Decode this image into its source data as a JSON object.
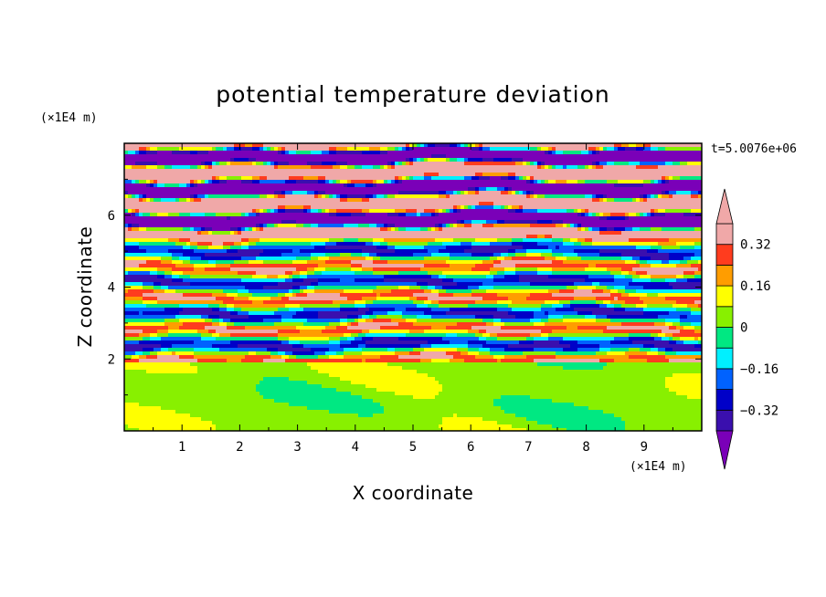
{
  "chart_data": {
    "type": "heatmap",
    "title": "potential temperature deviation",
    "xlabel": "X coordinate",
    "ylabel": "Z coordinate",
    "x_unit": "(×1E4 m)",
    "y_unit": "(×1E4 m)",
    "time_label": "t=5.0076e+06",
    "xlim": [
      0,
      10
    ],
    "ylim": [
      0,
      8
    ],
    "x_ticks": [
      "1",
      "2",
      "3",
      "4",
      "5",
      "6",
      "7",
      "8",
      "9"
    ],
    "y_ticks": [
      "2",
      "4",
      "6"
    ],
    "colorbar": {
      "levels": [
        -0.4,
        -0.32,
        -0.24,
        -0.16,
        -0.08,
        0,
        0.08,
        0.16,
        0.24,
        0.32,
        0.4
      ],
      "tick_labels": [
        "0.32",
        "0.16",
        "0",
        "−0.16",
        "−0.32"
      ],
      "tick_values": [
        0.32,
        0.16,
        0,
        -0.16,
        -0.32
      ],
      "colors": [
        "#7a00b8",
        "#3a0fae",
        "#0000c8",
        "#0062ff",
        "#00f0ff",
        "#00e882",
        "#88f000",
        "#ffff00",
        "#ff9d00",
        "#ff3c1e",
        "#f0a8a8"
      ],
      "extend": "both"
    }
  }
}
